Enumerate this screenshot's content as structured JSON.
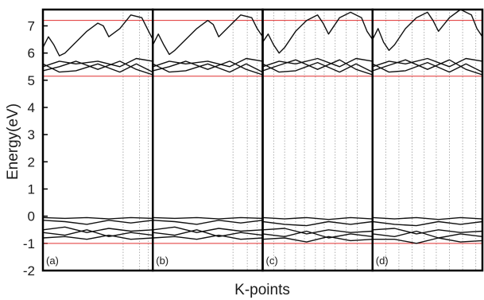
{
  "chart_data": {
    "type": "line",
    "title": "",
    "xlabel": "K-points",
    "ylabel": "Energy(eV)",
    "ylim": [
      -2,
      7.6
    ],
    "yticks": [
      7,
      6,
      5,
      4,
      3,
      2,
      1,
      0,
      -1,
      -2
    ],
    "grid": false,
    "colors": {
      "bands": "#111111",
      "reference_lines": "#e03030",
      "kpath_lines": "#9a9a9a",
      "frame": "#000000"
    },
    "reference_lines": [
      7.2,
      5.15,
      -1.0
    ],
    "panels": [
      {
        "label": "(a)",
        "high_symmetry_points": [
          0.0,
          0.73,
          0.88,
          0.96,
          1.0
        ],
        "bands": [
          {
            "x": [
              0,
              0.05,
              0.1,
              0.15,
              0.2,
              0.3,
              0.4,
              0.5,
              0.55,
              0.6,
              0.7,
              0.8,
              0.9,
              0.95,
              1.0
            ],
            "y": [
              6.2,
              6.6,
              6.3,
              5.9,
              6.0,
              6.4,
              6.8,
              7.1,
              7.0,
              6.6,
              6.9,
              7.4,
              7.3,
              6.9,
              6.5
            ]
          },
          {
            "x": [
              0,
              0.15,
              0.3,
              0.5,
              0.7,
              0.85,
              1.0
            ],
            "y": [
              5.5,
              5.7,
              5.6,
              5.7,
              5.5,
              5.8,
              5.7
            ]
          },
          {
            "x": [
              0,
              0.15,
              0.3,
              0.5,
              0.7,
              0.85,
              1.0
            ],
            "y": [
              5.35,
              5.5,
              5.7,
              5.4,
              5.7,
              5.4,
              5.2
            ]
          },
          {
            "x": [
              0,
              0.15,
              0.3,
              0.5,
              0.7,
              0.85,
              1.0
            ],
            "y": [
              5.6,
              5.3,
              5.35,
              5.6,
              5.3,
              5.6,
              5.3
            ]
          },
          {
            "x": [
              0,
              0.2,
              0.4,
              0.6,
              0.8,
              1.0
            ],
            "y": [
              -0.05,
              -0.08,
              -0.05,
              -0.1,
              -0.05,
              -0.08
            ]
          },
          {
            "x": [
              0,
              0.2,
              0.4,
              0.6,
              0.8,
              1.0
            ],
            "y": [
              -0.15,
              -0.2,
              -0.3,
              -0.15,
              -0.25,
              -0.15
            ]
          },
          {
            "x": [
              0,
              0.2,
              0.4,
              0.6,
              0.8,
              1.0
            ],
            "y": [
              -0.5,
              -0.4,
              -0.6,
              -0.45,
              -0.55,
              -0.5
            ]
          },
          {
            "x": [
              0,
              0.2,
              0.4,
              0.6,
              0.8,
              1.0
            ],
            "y": [
              -0.6,
              -0.7,
              -0.5,
              -0.75,
              -0.6,
              -0.7
            ]
          },
          {
            "x": [
              0,
              0.2,
              0.4,
              0.6,
              0.8,
              1.0
            ],
            "y": [
              -0.8,
              -0.75,
              -0.85,
              -0.7,
              -0.85,
              -0.8
            ]
          }
        ]
      },
      {
        "label": "(b)",
        "high_symmetry_points": [
          0.0,
          0.73,
          0.86,
          0.95,
          1.0
        ],
        "bands": [
          {
            "x": [
              0,
              0.05,
              0.1,
              0.15,
              0.2,
              0.3,
              0.4,
              0.5,
              0.55,
              0.6,
              0.7,
              0.8,
              0.9,
              0.95,
              1.0
            ],
            "y": [
              6.3,
              6.7,
              6.3,
              5.95,
              6.1,
              6.5,
              6.9,
              7.2,
              7.05,
              6.6,
              7.0,
              7.4,
              7.3,
              6.9,
              6.6
            ]
          },
          {
            "x": [
              0,
              0.15,
              0.3,
              0.5,
              0.7,
              0.85,
              1.0
            ],
            "y": [
              5.5,
              5.7,
              5.6,
              5.7,
              5.5,
              5.8,
              5.7
            ]
          },
          {
            "x": [
              0,
              0.15,
              0.3,
              0.5,
              0.7,
              0.85,
              1.0
            ],
            "y": [
              5.35,
              5.5,
              5.7,
              5.4,
              5.7,
              5.4,
              5.2
            ]
          },
          {
            "x": [
              0,
              0.15,
              0.3,
              0.5,
              0.7,
              0.85,
              1.0
            ],
            "y": [
              5.6,
              5.3,
              5.35,
              5.6,
              5.3,
              5.6,
              5.3
            ]
          },
          {
            "x": [
              0,
              0.2,
              0.4,
              0.6,
              0.8,
              1.0
            ],
            "y": [
              -0.05,
              -0.08,
              -0.05,
              -0.1,
              -0.05,
              -0.08
            ]
          },
          {
            "x": [
              0,
              0.2,
              0.4,
              0.6,
              0.8,
              1.0
            ],
            "y": [
              -0.15,
              -0.2,
              -0.3,
              -0.15,
              -0.25,
              -0.15
            ]
          },
          {
            "x": [
              0,
              0.2,
              0.4,
              0.6,
              0.8,
              1.0
            ],
            "y": [
              -0.5,
              -0.4,
              -0.6,
              -0.45,
              -0.55,
              -0.5
            ]
          },
          {
            "x": [
              0,
              0.2,
              0.4,
              0.6,
              0.8,
              1.0
            ],
            "y": [
              -0.6,
              -0.7,
              -0.5,
              -0.75,
              -0.6,
              -0.7
            ]
          },
          {
            "x": [
              0,
              0.2,
              0.4,
              0.6,
              0.8,
              1.0
            ],
            "y": [
              -0.8,
              -0.75,
              -0.85,
              -0.7,
              -0.85,
              -0.8
            ]
          }
        ]
      },
      {
        "label": "(c)",
        "high_symmetry_points": [
          0.0,
          0.1,
          0.2,
          0.3,
          0.38,
          0.48,
          0.56,
          0.66,
          0.76,
          0.86,
          1.0
        ],
        "bands": [
          {
            "x": [
              0,
              0.05,
              0.1,
              0.15,
              0.2,
              0.3,
              0.4,
              0.5,
              0.55,
              0.6,
              0.7,
              0.8,
              0.9,
              0.95,
              1.0
            ],
            "y": [
              6.4,
              6.7,
              6.3,
              6.0,
              6.2,
              6.8,
              7.2,
              7.4,
              7.1,
              6.7,
              7.3,
              7.5,
              7.3,
              6.8,
              6.5
            ]
          },
          {
            "x": [
              0,
              0.15,
              0.3,
              0.5,
              0.7,
              0.85,
              1.0
            ],
            "y": [
              5.5,
              5.7,
              5.6,
              5.8,
              5.5,
              5.8,
              5.7
            ]
          },
          {
            "x": [
              0,
              0.15,
              0.3,
              0.5,
              0.7,
              0.85,
              1.0
            ],
            "y": [
              5.35,
              5.55,
              5.75,
              5.4,
              5.75,
              5.4,
              5.2
            ]
          },
          {
            "x": [
              0,
              0.15,
              0.3,
              0.5,
              0.7,
              0.85,
              1.0
            ],
            "y": [
              5.6,
              5.3,
              5.35,
              5.65,
              5.3,
              5.6,
              5.3
            ]
          },
          {
            "x": [
              0,
              0.2,
              0.4,
              0.6,
              0.8,
              1.0
            ],
            "y": [
              -0.05,
              -0.1,
              -0.05,
              -0.12,
              -0.05,
              -0.1
            ]
          },
          {
            "x": [
              0,
              0.2,
              0.4,
              0.6,
              0.8,
              1.0
            ],
            "y": [
              -0.2,
              -0.3,
              -0.35,
              -0.2,
              -0.3,
              -0.2
            ]
          },
          {
            "x": [
              0,
              0.2,
              0.4,
              0.6,
              0.8,
              1.0
            ],
            "y": [
              -0.5,
              -0.45,
              -0.65,
              -0.5,
              -0.6,
              -0.55
            ]
          },
          {
            "x": [
              0,
              0.2,
              0.4,
              0.6,
              0.8,
              1.0
            ],
            "y": [
              -0.65,
              -0.75,
              -0.55,
              -0.8,
              -0.65,
              -0.75
            ]
          },
          {
            "x": [
              0,
              0.2,
              0.4,
              0.6,
              0.8,
              1.0
            ],
            "y": [
              -0.85,
              -0.8,
              -0.95,
              -0.75,
              -0.9,
              -0.85
            ]
          }
        ]
      },
      {
        "label": "(d)",
        "high_symmetry_points": [
          0.0,
          0.12,
          0.24,
          0.36,
          0.47,
          0.58,
          0.7,
          0.82,
          0.94
        ],
        "bands": [
          {
            "x": [
              0,
              0.05,
              0.1,
              0.15,
              0.2,
              0.3,
              0.4,
              0.5,
              0.55,
              0.6,
              0.7,
              0.8,
              0.9,
              0.95,
              1.0
            ],
            "y": [
              6.5,
              6.9,
              6.4,
              6.1,
              6.3,
              6.9,
              7.3,
              7.5,
              7.2,
              6.8,
              7.3,
              7.6,
              7.4,
              6.9,
              6.6
            ]
          },
          {
            "x": [
              0,
              0.15,
              0.3,
              0.5,
              0.7,
              0.85,
              1.0
            ],
            "y": [
              5.5,
              5.7,
              5.6,
              5.8,
              5.5,
              5.8,
              5.7
            ]
          },
          {
            "x": [
              0,
              0.15,
              0.3,
              0.5,
              0.7,
              0.85,
              1.0
            ],
            "y": [
              5.35,
              5.55,
              5.75,
              5.4,
              5.75,
              5.4,
              5.2
            ]
          },
          {
            "x": [
              0,
              0.15,
              0.3,
              0.5,
              0.7,
              0.85,
              1.0
            ],
            "y": [
              5.6,
              5.3,
              5.35,
              5.65,
              5.3,
              5.6,
              5.3
            ]
          },
          {
            "x": [
              0,
              0.2,
              0.4,
              0.6,
              0.8,
              1.0
            ],
            "y": [
              -0.05,
              -0.1,
              -0.05,
              -0.12,
              -0.05,
              -0.1
            ]
          },
          {
            "x": [
              0,
              0.2,
              0.4,
              0.6,
              0.8,
              1.0
            ],
            "y": [
              -0.2,
              -0.3,
              -0.35,
              -0.2,
              -0.3,
              -0.2
            ]
          },
          {
            "x": [
              0,
              0.2,
              0.4,
              0.6,
              0.8,
              1.0
            ],
            "y": [
              -0.5,
              -0.45,
              -0.65,
              -0.5,
              -0.6,
              -0.55
            ]
          },
          {
            "x": [
              0,
              0.2,
              0.4,
              0.6,
              0.8,
              1.0
            ],
            "y": [
              -0.65,
              -0.75,
              -0.55,
              -0.8,
              -0.65,
              -0.75
            ]
          },
          {
            "x": [
              0,
              0.2,
              0.4,
              0.6,
              0.8,
              1.0
            ],
            "y": [
              -0.85,
              -0.85,
              -1.0,
              -0.8,
              -0.95,
              -0.9
            ]
          }
        ]
      }
    ]
  }
}
